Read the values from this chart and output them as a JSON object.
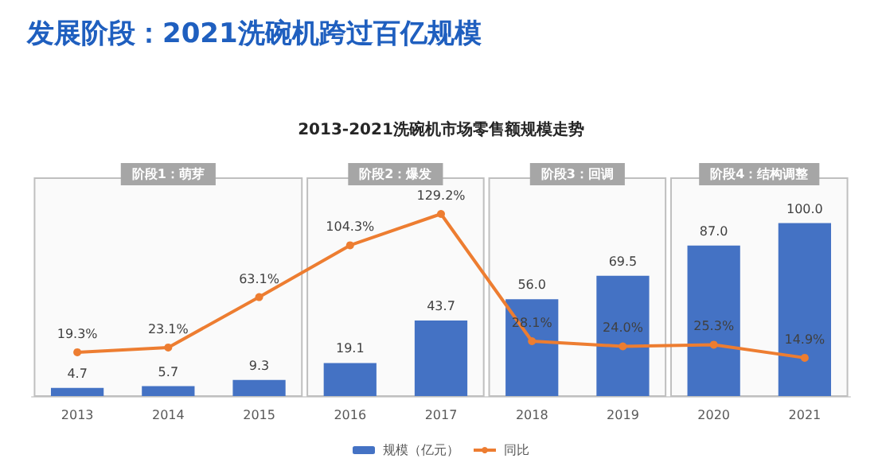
{
  "chart_data": {
    "type": "bar",
    "title": "发展阶段：2021洗碗机跨过百亿规模",
    "subtitle": "2013-2021洗碗机市场零售额规模走势",
    "categories": [
      "2013",
      "2014",
      "2015",
      "2016",
      "2017",
      "2018",
      "2019",
      "2020",
      "2021"
    ],
    "series": [
      {
        "name": "规模（亿元）",
        "color": "#4472c4",
        "values": [
          4.7,
          5.7,
          9.3,
          19.1,
          43.7,
          56.0,
          69.5,
          87.0,
          100.0
        ],
        "value_labels": [
          "4.7",
          "5.7",
          "9.3",
          "19.1",
          "43.7",
          "56.0",
          "69.5",
          "87.0",
          "100.0"
        ]
      },
      {
        "name": "同比",
        "type": "line",
        "axis": "y2",
        "color": "#ed7d31",
        "marker": "circle",
        "values": [
          19.3,
          23.1,
          63.1,
          104.3,
          129.2,
          28.1,
          24.0,
          25.3,
          14.9
        ],
        "value_labels": [
          "19.3%",
          "23.1%",
          "63.1%",
          "104.3%",
          "129.2%",
          "28.1%",
          "24.0%",
          "25.3%",
          "14.9%"
        ]
      }
    ],
    "bands": [
      {
        "axis": "x",
        "from": "2013",
        "to": "2015",
        "label": "阶段1：萌芽"
      },
      {
        "axis": "x",
        "from": "2016",
        "to": "2017",
        "label": "阶段2：爆发"
      },
      {
        "axis": "x",
        "from": "2018",
        "to": "2019",
        "label": "阶段3：回调"
      },
      {
        "axis": "x",
        "from": "2020",
        "to": "2021",
        "label": "阶段4：结构调整"
      }
    ],
    "tick_labels": "x",
    "grid": false,
    "legend": "bottom"
  }
}
